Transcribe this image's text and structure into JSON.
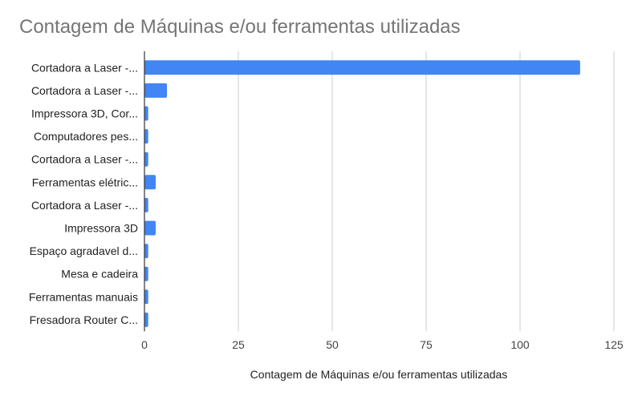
{
  "chart_data": {
    "type": "bar",
    "orientation": "horizontal",
    "title": "Contagem de Máquinas e/ou ferramentas utilizadas",
    "xlabel": "Contagem de Máquinas e/ou ferramentas utilizadas",
    "ylabel": "",
    "categories": [
      "Cortadora a Laser -...",
      "Cortadora a Laser -...",
      "Impressora 3D, Cor...",
      "Computadores pes...",
      "Cortadora a Laser -...",
      "Ferramentas elétric...",
      "Cortadora a Laser -...",
      "Impressora 3D",
      "Espaço agradavel d...",
      "Mesa e cadeira",
      "Ferramentas manuais",
      "Fresadora Router C..."
    ],
    "values": [
      116,
      6,
      1,
      1,
      1,
      3,
      1,
      3,
      1,
      1,
      1,
      1
    ],
    "xlim": [
      0,
      125
    ],
    "xticks": [
      "0",
      "25",
      "50",
      "75",
      "100",
      "125"
    ],
    "grid": true,
    "legend": "none",
    "bar_color": "#4285f4",
    "grid_color": "#cccccc",
    "axis_color": "#333333"
  }
}
